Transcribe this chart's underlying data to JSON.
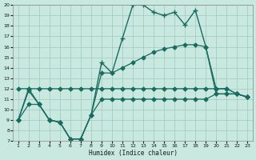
{
  "xlabel": "Humidex (Indice chaleur)",
  "bg_color": "#c8e8e0",
  "grid_color": "#a0c8c0",
  "line_color": "#1a6b60",
  "xlim": [
    0.5,
    23.5
  ],
  "ylim": [
    7,
    20
  ],
  "xticks": [
    1,
    2,
    3,
    4,
    5,
    6,
    7,
    8,
    9,
    10,
    11,
    12,
    13,
    14,
    15,
    16,
    17,
    18,
    19,
    20,
    21,
    22,
    23
  ],
  "yticks": [
    7,
    8,
    9,
    10,
    11,
    12,
    13,
    14,
    15,
    16,
    17,
    18,
    19,
    20
  ],
  "lines": [
    {
      "x": [
        1,
        2,
        3,
        4,
        5,
        6,
        7,
        8,
        9,
        10,
        11,
        12,
        13,
        14,
        15,
        16,
        17,
        18,
        19,
        20,
        21,
        22,
        23
      ],
      "y": [
        9,
        12,
        10.5,
        9,
        8.8,
        7.2,
        7.2,
        9.5,
        14.5,
        13.5,
        16.8,
        20,
        20,
        19.3,
        19,
        19.3,
        18.1,
        19.5,
        16,
        11.5,
        11.5,
        11.5,
        11.2
      ],
      "marker": "+",
      "markersize": 5,
      "linewidth": 1.0
    },
    {
      "x": [
        1,
        2,
        3,
        4,
        5,
        6,
        7,
        8,
        9,
        10,
        11,
        12,
        13,
        14,
        15,
        16,
        17,
        18,
        19,
        20,
        21,
        22,
        23
      ],
      "y": [
        9,
        11.8,
        10.5,
        9,
        8.8,
        7.2,
        7.2,
        9.5,
        13.5,
        13.5,
        14,
        14.5,
        15,
        15.5,
        15.8,
        16,
        16.2,
        16.2,
        16,
        12,
        12,
        11.5,
        11.2
      ],
      "marker": "D",
      "markersize": 2.5,
      "linewidth": 0.9
    },
    {
      "x": [
        1,
        2,
        3,
        4,
        5,
        6,
        7,
        8,
        9,
        10,
        11,
        12,
        13,
        14,
        15,
        16,
        17,
        18,
        19,
        20,
        21,
        22,
        23
      ],
      "y": [
        12,
        12,
        12,
        12,
        12,
        12,
        12,
        12,
        12,
        12,
        12,
        12,
        12,
        12,
        12,
        12,
        12,
        12,
        12,
        12,
        12,
        11.5,
        11.2
      ],
      "marker": "D",
      "markersize": 2.5,
      "linewidth": 0.9
    },
    {
      "x": [
        1,
        2,
        3,
        4,
        5,
        6,
        7,
        8,
        9,
        10,
        11,
        12,
        13,
        14,
        15,
        16,
        17,
        18,
        19,
        20,
        21,
        22,
        23
      ],
      "y": [
        9,
        10.5,
        10.5,
        9,
        8.8,
        7.2,
        7.2,
        9.5,
        11,
        11,
        11,
        11,
        11,
        11,
        11,
        11,
        11,
        11,
        11,
        11.5,
        11.5,
        11.5,
        11.2
      ],
      "marker": "D",
      "markersize": 2.5,
      "linewidth": 0.9
    }
  ]
}
